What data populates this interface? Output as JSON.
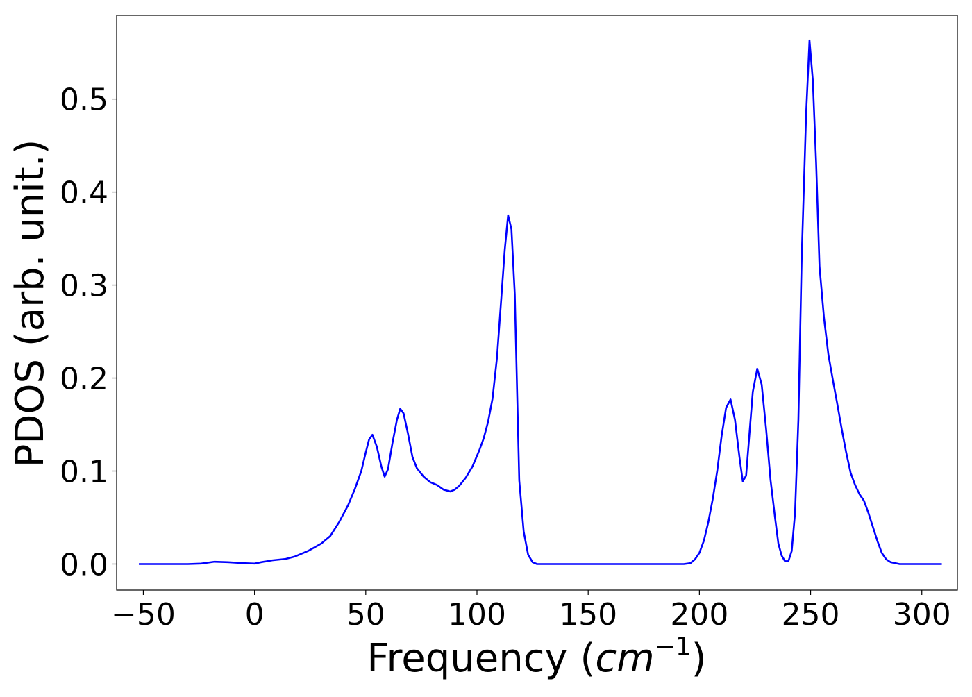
{
  "chart_data": {
    "type": "line",
    "title": "",
    "xlabel": "Frequency",
    "xlabel_unit_prefix": "(",
    "xlabel_unit_italic": "cm",
    "xlabel_unit_sup": "−1",
    "xlabel_unit_suffix": ")",
    "ylabel": "PDOS (arb. unit.)",
    "xlim": [
      -62,
      316
    ],
    "ylim": [
      -0.028,
      0.59
    ],
    "xticks": [
      -50,
      0,
      50,
      100,
      150,
      200,
      250,
      300
    ],
    "xtick_labels": [
      "−50",
      "0",
      "50",
      "100",
      "150",
      "200",
      "250",
      "300"
    ],
    "yticks": [
      0.0,
      0.1,
      0.2,
      0.3,
      0.4,
      0.5
    ],
    "ytick_labels": [
      "0.0",
      "0.1",
      "0.2",
      "0.3",
      "0.4",
      "0.5"
    ],
    "grid": false,
    "legend": "none",
    "series": [
      {
        "color": "#0000ff",
        "x": [
          -52,
          -40,
          -30,
          -24,
          -18,
          -12,
          -5,
          0,
          3,
          8,
          14,
          18,
          24,
          30,
          34,
          38,
          42,
          45,
          48,
          50,
          51.5,
          53,
          55,
          57,
          58.5,
          60,
          62,
          64,
          65.5,
          67,
          69,
          71,
          73,
          76,
          79,
          82,
          85,
          88,
          90,
          92,
          95,
          98,
          101,
          103,
          105,
          107,
          109,
          111,
          112.5,
          114,
          115.5,
          117,
          119,
          121,
          123,
          125,
          127,
          130,
          140,
          160,
          180,
          193,
          196,
          198,
          200,
          202,
          204,
          206,
          208,
          210,
          212,
          214,
          216,
          218,
          219.5,
          221,
          222.5,
          224,
          226,
          228,
          230,
          232,
          234,
          235.5,
          237,
          238.5,
          240,
          241.5,
          243,
          244.5,
          246,
          248,
          249.5,
          251,
          252.5,
          254,
          256,
          258,
          260,
          262,
          264,
          266,
          268,
          270,
          272,
          274,
          276,
          278,
          280,
          282,
          284,
          286,
          290,
          300,
          309
        ],
        "y": [
          0.0,
          0.0,
          0.0,
          0.0005,
          0.0025,
          0.002,
          0.001,
          0.0005,
          0.002,
          0.004,
          0.0055,
          0.008,
          0.014,
          0.022,
          0.03,
          0.045,
          0.063,
          0.08,
          0.1,
          0.12,
          0.134,
          0.139,
          0.126,
          0.105,
          0.094,
          0.102,
          0.13,
          0.155,
          0.167,
          0.162,
          0.14,
          0.115,
          0.103,
          0.094,
          0.088,
          0.085,
          0.08,
          0.078,
          0.08,
          0.084,
          0.093,
          0.105,
          0.122,
          0.135,
          0.153,
          0.178,
          0.222,
          0.288,
          0.338,
          0.375,
          0.36,
          0.29,
          0.09,
          0.035,
          0.01,
          0.002,
          0.0,
          0.0,
          0.0,
          0.0,
          0.0,
          0.0,
          0.001,
          0.005,
          0.012,
          0.025,
          0.045,
          0.07,
          0.1,
          0.138,
          0.168,
          0.177,
          0.155,
          0.115,
          0.089,
          0.095,
          0.14,
          0.185,
          0.21,
          0.193,
          0.145,
          0.09,
          0.05,
          0.022,
          0.009,
          0.003,
          0.003,
          0.014,
          0.055,
          0.155,
          0.33,
          0.485,
          0.563,
          0.52,
          0.43,
          0.32,
          0.265,
          0.225,
          0.198,
          0.172,
          0.145,
          0.12,
          0.098,
          0.085,
          0.075,
          0.068,
          0.055,
          0.04,
          0.025,
          0.012,
          0.005,
          0.002,
          0.0,
          0.0,
          0.0
        ]
      }
    ]
  }
}
